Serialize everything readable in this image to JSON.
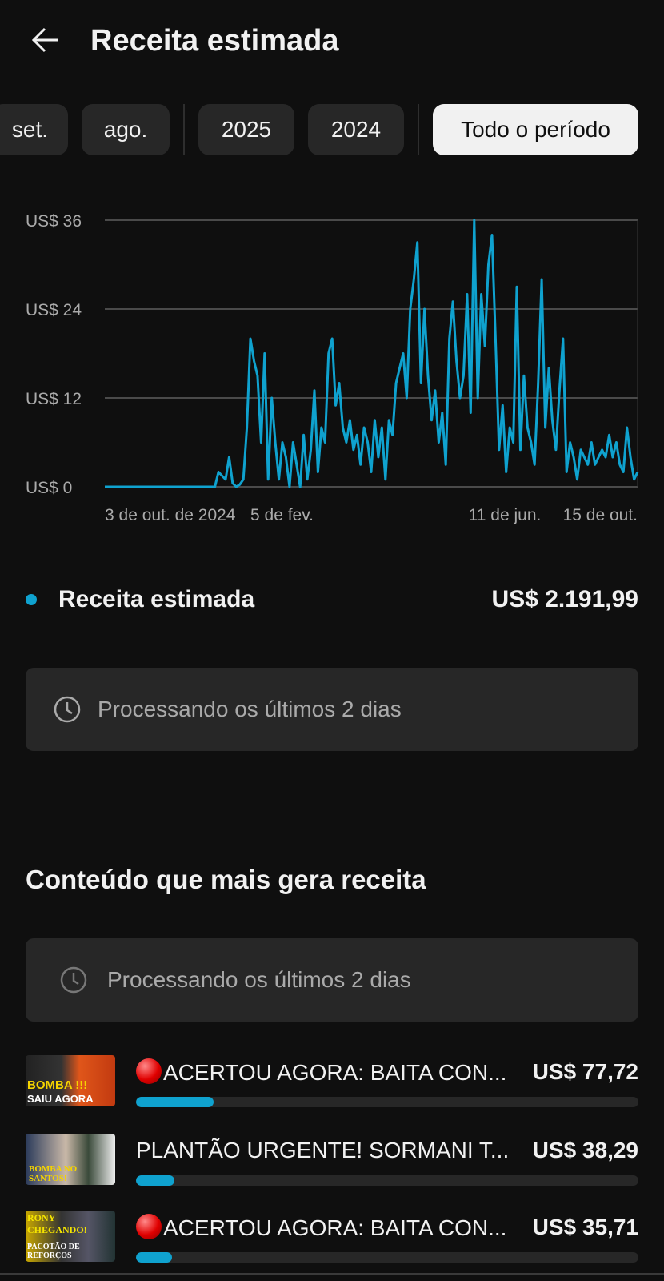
{
  "header": {
    "title": "Receita estimada",
    "back_icon": "arrow-left-icon"
  },
  "filters": [
    {
      "label": "set.",
      "selected": false
    },
    {
      "label": "ago.",
      "selected": false
    },
    {
      "label": "2025",
      "selected": false
    },
    {
      "label": "2024",
      "selected": false
    },
    {
      "label": "Todo o período",
      "selected": true
    }
  ],
  "chart_data": {
    "type": "line",
    "title": "",
    "xlabel": "",
    "ylabel": "",
    "ylim": [
      0,
      36
    ],
    "y_ticks": [
      0,
      12,
      24,
      36
    ],
    "y_tick_labels": [
      "US$ 0",
      "US$ 12",
      "US$ 24",
      "US$ 36"
    ],
    "x_tick_labels": [
      "3 de out. de 2024",
      "5 de fev.",
      "11 de jun.",
      "15 de out."
    ],
    "grid": true,
    "color": "#0fa2cf",
    "series": [
      {
        "values": [
          0,
          0,
          0,
          0,
          0,
          0,
          0,
          0,
          0,
          0,
          0,
          0,
          0,
          0,
          0,
          0,
          0,
          0,
          0,
          0,
          0,
          0,
          0,
          0,
          0,
          0,
          0,
          0,
          0,
          0,
          0,
          0,
          2,
          1.5,
          1,
          4,
          0.5,
          0,
          0.3,
          1,
          8,
          20,
          17,
          15,
          6,
          18,
          1,
          12,
          6,
          1,
          6,
          4,
          0,
          6,
          3,
          0,
          7,
          1,
          5,
          13,
          2,
          8,
          6,
          18,
          20,
          11,
          14,
          8,
          6,
          9,
          5,
          7,
          3,
          8,
          6,
          2,
          9,
          4,
          8,
          1,
          9,
          7,
          14,
          16,
          18,
          12,
          24,
          28,
          33,
          14,
          24,
          15,
          9,
          13,
          6,
          10,
          3,
          20,
          25,
          17,
          12,
          15,
          26,
          10,
          36,
          12,
          26,
          19,
          30,
          34,
          20,
          5,
          11,
          2,
          8,
          6,
          27,
          5,
          15,
          8,
          6,
          3,
          14,
          28,
          8,
          16,
          9,
          5,
          13,
          20,
          2,
          6,
          4,
          1,
          5,
          4,
          3,
          6,
          3,
          4,
          5,
          4,
          7,
          4,
          6,
          3,
          2,
          8,
          4,
          1,
          2
        ]
      }
    ]
  },
  "legend": {
    "label": "Receita estimada",
    "total": "US$ 2.191,99",
    "color": "#0fa2cf"
  },
  "processing_notice": {
    "icon": "clock-icon",
    "text": "Processando os últimos 2 dias"
  },
  "top_content": {
    "heading": "Conteúdo que mais gera receita",
    "processing_notice": {
      "icon": "clock-icon",
      "text": "Processando os últimos 2 dias"
    },
    "items": [
      {
        "title": "ACERTOU AGORA: BAITA CON...",
        "live_dot": true,
        "value": "US$ 77,72",
        "share": 0.155,
        "thumb_text": [
          "BOMBA !!!",
          "SAIU AGORA"
        ]
      },
      {
        "title": "PLANTÃO URGENTE! SORMANI T...",
        "live_dot": false,
        "value": "US$ 38,29",
        "share": 0.076,
        "thumb_text": [
          "BOMBA NO SANTOS!"
        ]
      },
      {
        "title": "ACERTOU AGORA: BAITA CON...",
        "live_dot": true,
        "value": "US$ 35,71",
        "share": 0.071,
        "thumb_text": [
          "RONY CHEGANDO!",
          "PACOTÃO DE REFORÇOS"
        ]
      }
    ]
  }
}
